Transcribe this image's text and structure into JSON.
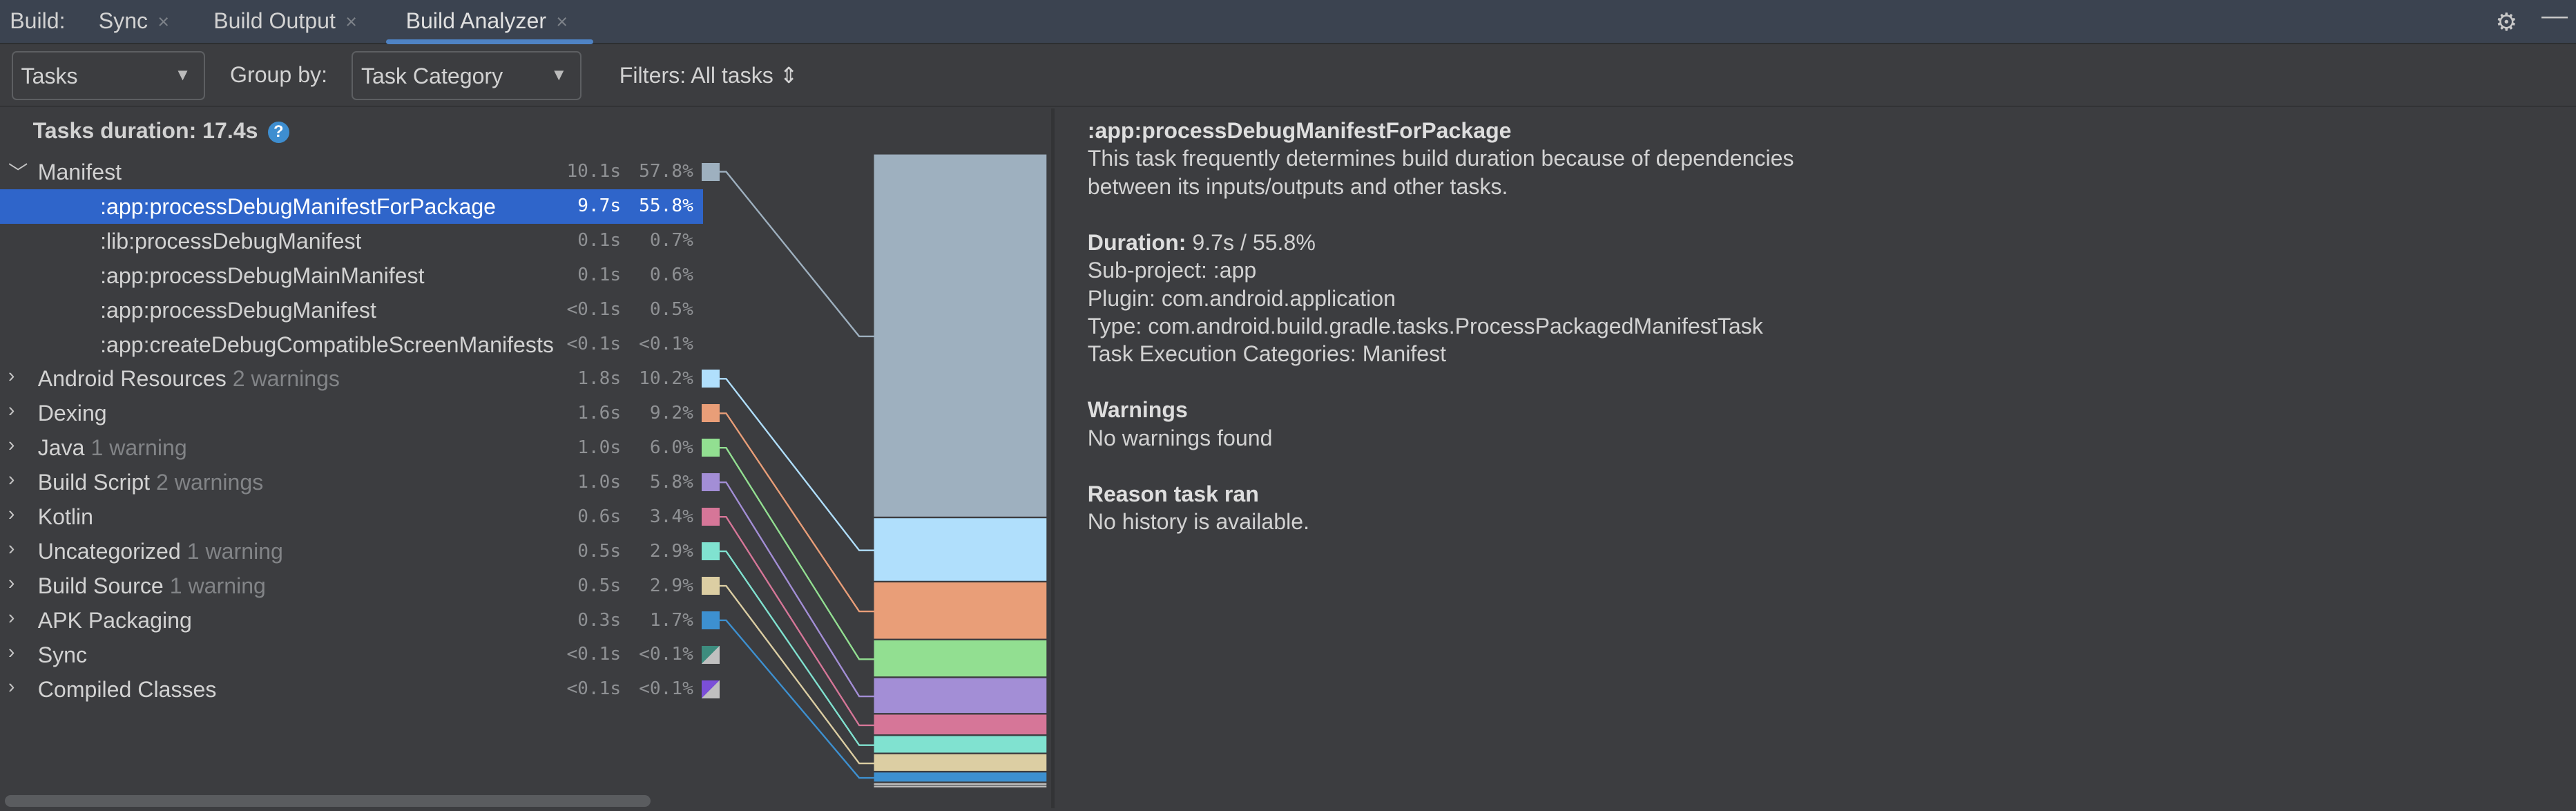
{
  "tabbar": {
    "prefix": "Build:",
    "tabs": [
      {
        "label": "Sync"
      },
      {
        "label": "Build Output"
      },
      {
        "label": "Build Analyzer",
        "active": true
      }
    ],
    "close_glyph": "×",
    "settings_icon": "gear-icon",
    "minimize_icon": "minus-icon"
  },
  "toolbar": {
    "view_select": "Tasks",
    "group_by_label": "Group by:",
    "group_by_select": "Task Category",
    "filters": "Filters: All tasks ⇕"
  },
  "tree": {
    "header": "Tasks duration: 17.4s",
    "rows": [
      {
        "name": "Manifest",
        "time": "10.1s",
        "pct": "57.8%",
        "expanded": true,
        "color": "#9eb0bf"
      },
      {
        "name": ":app:processDebugManifestForPackage",
        "time": "9.7s",
        "pct": "55.8%",
        "child": true,
        "selected": true
      },
      {
        "name": ":lib:processDebugManifest",
        "time": "0.1s",
        "pct": "0.7%",
        "child": true
      },
      {
        "name": ":app:processDebugMainManifest",
        "time": "0.1s",
        "pct": "0.6%",
        "child": true
      },
      {
        "name": ":app:processDebugManifest",
        "time": "<0.1s",
        "pct": "0.5%",
        "child": true
      },
      {
        "name": ":app:createDebugCompatibleScreenManifests",
        "time": "<0.1s",
        "pct": "<0.1%",
        "child": true
      },
      {
        "name": "Android Resources",
        "warn": "2 warnings",
        "time": "1.8s",
        "pct": "10.2%",
        "color": "#b0dffc"
      },
      {
        "name": "Dexing",
        "time": "1.6s",
        "pct": "9.2%",
        "color": "#e99e78"
      },
      {
        "name": "Java",
        "warn": "1 warning",
        "time": "1.0s",
        "pct": "6.0%",
        "color": "#92df91"
      },
      {
        "name": "Build Script",
        "warn": "2 warnings",
        "time": "1.0s",
        "pct": "5.8%",
        "color": "#a38ed6"
      },
      {
        "name": "Kotlin",
        "time": "0.6s",
        "pct": "3.4%",
        "color": "#d67698"
      },
      {
        "name": "Uncategorized",
        "warn": "1 warning",
        "time": "0.5s",
        "pct": "2.9%",
        "color": "#80e2d0"
      },
      {
        "name": "Build Source",
        "warn": "1 warning",
        "time": "0.5s",
        "pct": "2.9%",
        "color": "#dccea3"
      },
      {
        "name": "APK Packaging",
        "time": "0.3s",
        "pct": "1.7%",
        "color": "#3d90d0"
      },
      {
        "name": "Sync",
        "time": "<0.1s",
        "pct": "<0.1%",
        "color": "#3d8c7e",
        "color2": "#c0c0c0"
      },
      {
        "name": "Compiled Classes",
        "time": "<0.1s",
        "pct": "<0.1%",
        "color": "#7b4fd8",
        "color2": "#c0c0c0"
      }
    ]
  },
  "chart_data": {
    "type": "bar",
    "categories": [
      "Manifest",
      "Android Resources",
      "Dexing",
      "Java",
      "Build Script",
      "Kotlin",
      "Uncategorized",
      "Build Source",
      "APK Packaging",
      "Sync",
      "Compiled Classes"
    ],
    "values": [
      57.8,
      10.2,
      9.2,
      6.0,
      5.8,
      3.4,
      2.9,
      2.9,
      1.7,
      0.05,
      0.05
    ],
    "colors": [
      "#9eb0bf",
      "#b0dffc",
      "#e99e78",
      "#92df91",
      "#a38ed6",
      "#d67698",
      "#80e2d0",
      "#dccea3",
      "#3d90d0",
      "#c0c0c0",
      "#c0c0c0"
    ],
    "stacked": true
  },
  "details": {
    "title": ":app:processDebugManifestForPackage",
    "desc1": "This task frequently determines build duration because of dependencies",
    "desc2": "between its inputs/outputs and other tasks.",
    "duration_label": "Duration:",
    "duration": " 9.7s / 55.8%",
    "subproject": "Sub-project: :app",
    "plugin": "Plugin: com.android.application",
    "type": "Type: com.android.build.gradle.tasks.ProcessPackagedManifestTask",
    "categories": "Task Execution Categories: Manifest",
    "warnings_title": "Warnings",
    "warnings": "No warnings found",
    "reason_title": "Reason task ran",
    "reason": "No history is available."
  }
}
